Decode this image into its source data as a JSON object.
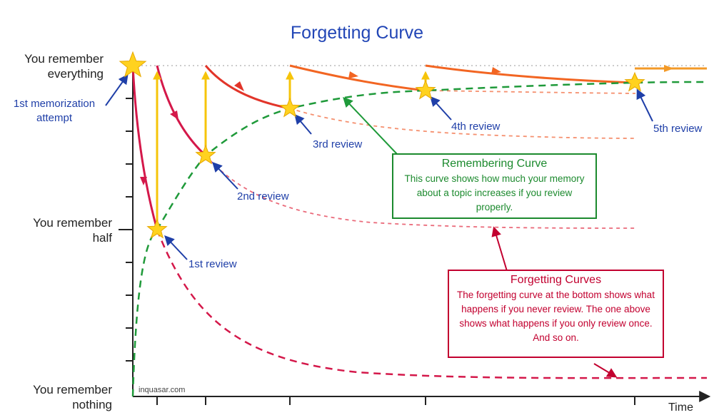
{
  "title": "Forgetting Curve",
  "y_labels": {
    "top": "You remember\neverything",
    "middle": "You remember\nhalf",
    "bottom": "You remember\nnothing"
  },
  "x_label": "Time",
  "first_attempt_label": "1st memorization\nattempt",
  "review_labels": [
    "1st review",
    "2nd review",
    "3rd review",
    "4th review",
    "5th review"
  ],
  "remembering_box": {
    "title": "Remembering Curve",
    "body": "This curve shows how much your memory about a topic increases if you review properly."
  },
  "forgetting_box": {
    "title": "Forgetting Curves",
    "body": "The forgetting curve at the bottom shows what happens if you never review. The one above shows what happens if you only review once. And so on."
  },
  "watermark": "inquasar.com",
  "colors": {
    "title": "#2246b6",
    "labels": "#1f3fa8",
    "forgetting": "#d4184a",
    "forgetting_light": "#ea6a7a",
    "orange": "#f26522",
    "yellow_arrow": "#f6c40a",
    "remembering": "#1f9a3a",
    "star": "#ffd21f"
  }
}
